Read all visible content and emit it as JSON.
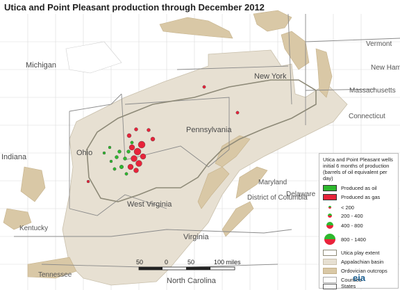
{
  "title": "Utica and Point Pleasant production through December 2012",
  "labels": {
    "vermont": "Vermont",
    "new_hampshire": "New Ham",
    "massachusetts": "Massachusetts",
    "connecticut": "Connecticut",
    "michigan": "Michigan",
    "new_york": "New York",
    "pennsylvania": "Pennsylvania",
    "ohio": "Ohio",
    "indiana": "Indiana",
    "west_virginia": "West Virginia",
    "maryland": "Maryland",
    "delaware": "Delaware",
    "dc": "District of Columbia",
    "kentucky": "Kentucky",
    "virginia": "Virginia",
    "tennessee": "Tennessee",
    "north_carolina": "North Carolina"
  },
  "legend": {
    "header": "Utica and Point Pleasant wells initial 6 months of production (barrels of oil equivalent per day)",
    "produced_oil": "Produced as oil",
    "produced_gas": "Produced as gas",
    "size_1": "< 200",
    "size_2": "200 - 400",
    "size_3": "400 - 800",
    "size_4": "800 - 1400",
    "utica_extent": "Utica play extent",
    "appalachian": "Appalachian basin",
    "ordovician": "Ordovician outcrops",
    "counties": "Counties",
    "states": "States"
  },
  "scale": {
    "l50": "50",
    "l0": "0",
    "l50b": "50",
    "l100": "100 miles"
  },
  "logo": "eia",
  "colors": {
    "oil": "#2eb82e",
    "gas": "#e8233a",
    "basin": "#e7e0d2",
    "outcrop": "#d9c8a6",
    "extent": "#8e8a78"
  }
}
